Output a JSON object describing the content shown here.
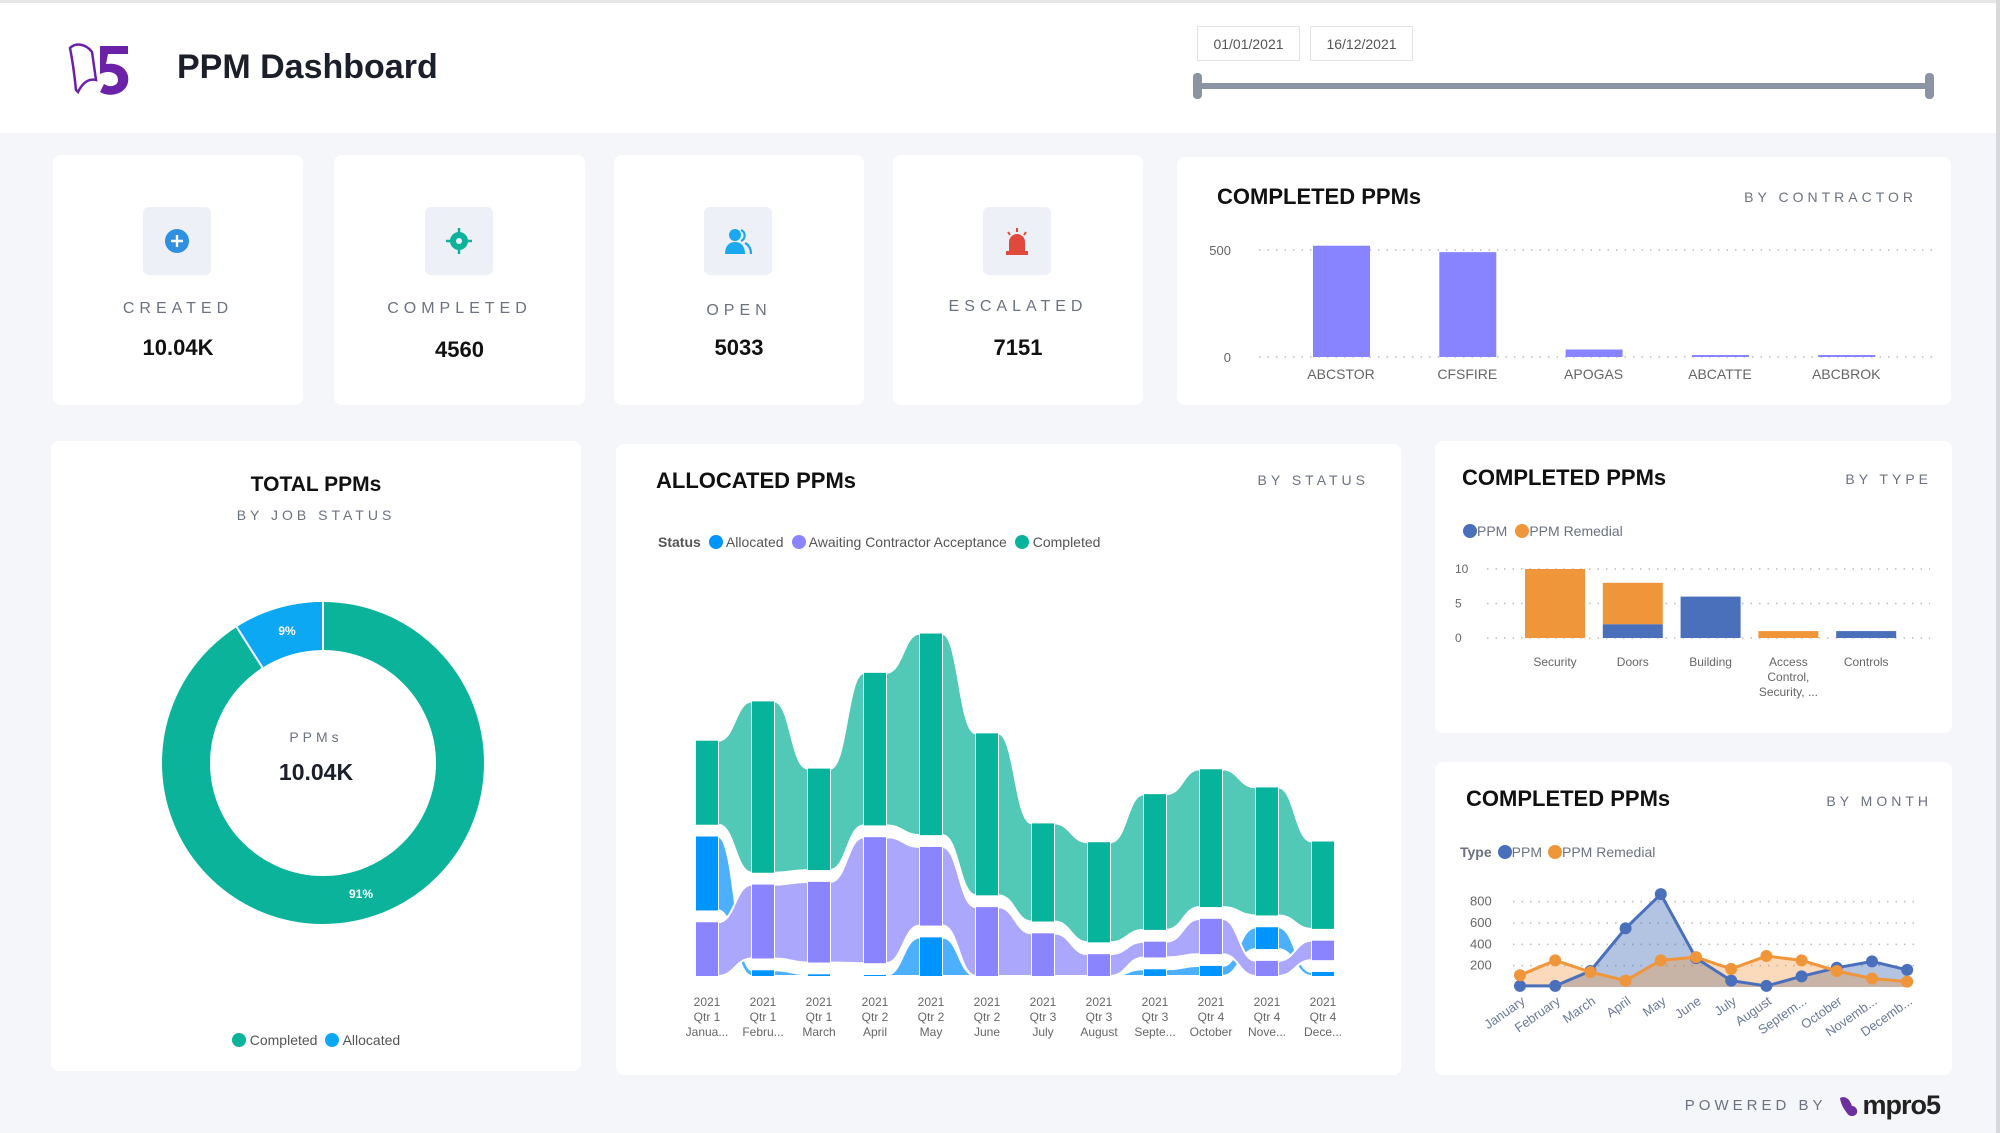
{
  "header": {
    "title": "PPM Dashboard",
    "logo_text": "5",
    "date_start": "01/01/2021",
    "date_end": "16/12/2021"
  },
  "kpis": [
    {
      "label": "CREATED",
      "value": "10.04K",
      "icon": "plus-circle-icon",
      "color": "#2f8fe0"
    },
    {
      "label": "COMPLETED",
      "value": "4560",
      "icon": "target-icon",
      "color": "#0bb39a"
    },
    {
      "label": "OPEN",
      "value": "5033",
      "icon": "users-icon",
      "color": "#1aa8f0"
    },
    {
      "label": "ESCALATED",
      "value": "7151",
      "icon": "alarm-icon",
      "color": "#e04a3a"
    }
  ],
  "colors": {
    "completed": "#08b39b",
    "completed_ribbon": "#52c8b6",
    "awaiting": "#8a85ff",
    "awaiting_ribbon": "#aaa7fc",
    "allocated": "#0094ff",
    "allocated_ribbon": "#4db0ff",
    "ppm": "#4a6fbb",
    "remedial": "#f0963a",
    "contractor": "#8884ff"
  },
  "footer": {
    "powered_by": "POWERED BY",
    "brand": "mpro5"
  },
  "chart_data": [
    {
      "id": "contractor",
      "type": "bar",
      "title": "COMPLETED PPMs",
      "subtitle": "BY CONTRACTOR",
      "categories": [
        "ABCSTOR",
        "CFSFIRE",
        "APOGAS",
        "ABCATTE",
        "ABCBROK"
      ],
      "values": [
        520,
        490,
        35,
        8,
        8
      ],
      "yticks": [
        "0",
        "500"
      ],
      "ylim": [
        0,
        500
      ],
      "grid": true
    },
    {
      "id": "total",
      "type": "pie",
      "title": "TOTAL PPMs",
      "subtitle": "BY JOB STATUS",
      "center_label": "PPMs",
      "center_value": "10.04K",
      "slices": [
        {
          "name": "Completed",
          "value": 91,
          "label": "91%"
        },
        {
          "name": "Allocated",
          "value": 9,
          "label": "9%"
        }
      ],
      "legend": "bottom"
    },
    {
      "id": "allocated",
      "type": "area",
      "subtype": "ribbon",
      "title": "ALLOCATED PPMs",
      "subtitle": "BY STATUS",
      "legend_title": "Status",
      "categories": [
        [
          "2021",
          "Qtr 1",
          "Janua..."
        ],
        [
          "2021",
          "Qtr 1",
          "Febru..."
        ],
        [
          "2021",
          "Qtr 1",
          "March"
        ],
        [
          "2021",
          "Qtr 2",
          "April"
        ],
        [
          "2021",
          "Qtr 2",
          "May"
        ],
        [
          "2021",
          "Qtr 2",
          "June"
        ],
        [
          "2021",
          "Qtr 3",
          "July"
        ],
        [
          "2021",
          "Qtr 3",
          "August"
        ],
        [
          "2021",
          "Qtr 3",
          "Septe..."
        ],
        [
          "2021",
          "Qtr 4",
          "October"
        ],
        [
          "2021",
          "Qtr 4",
          "Nove..."
        ],
        [
          "2021",
          "Qtr 4",
          "Dece..."
        ]
      ],
      "series": [
        {
          "name": "Allocated",
          "values": [
            220,
            17,
            5,
            3,
            115,
            0,
            0,
            0,
            20,
            30,
            65,
            12
          ]
        },
        {
          "name": "Awaiting Contractor Acceptance",
          "values": [
            160,
            220,
            240,
            375,
            234,
            205,
            127,
            65,
            47,
            105,
            45,
            58
          ]
        },
        {
          "name": "Completed",
          "values": [
            250,
            510,
            302,
            454,
            600,
            482,
            292,
            298,
            404,
            410,
            381,
            260
          ]
        }
      ],
      "legend": "top-left"
    },
    {
      "id": "bytype",
      "type": "bar",
      "subtype": "stacked",
      "title": "COMPLETED PPMs",
      "subtitle": "BY TYPE",
      "categories": [
        "Security",
        "Doors",
        "Building",
        [
          "Access",
          "Control,",
          "Security, ..."
        ],
        "Controls"
      ],
      "series": [
        {
          "name": "PPM",
          "values": [
            0,
            2,
            6,
            0,
            1
          ]
        },
        {
          "name": "PPM Remedial",
          "values": [
            10,
            6,
            0,
            1,
            0
          ]
        }
      ],
      "yticks": [
        "0",
        "5",
        "10"
      ],
      "ylim": [
        0,
        10
      ],
      "legend": "top-left"
    },
    {
      "id": "bymonth",
      "type": "area",
      "title": "COMPLETED PPMs",
      "subtitle": "BY MONTH",
      "legend_title": "Type",
      "categories": [
        "January",
        "February",
        "March",
        "April",
        "May",
        "June",
        "July",
        "August",
        "Septem...",
        "October",
        "Novemb...",
        "Decemb..."
      ],
      "series": [
        {
          "name": "PPM",
          "values": [
            10,
            10,
            150,
            550,
            870,
            270,
            60,
            10,
            100,
            180,
            240,
            160
          ]
        },
        {
          "name": "PPM Remedial",
          "values": [
            110,
            250,
            140,
            60,
            250,
            280,
            170,
            290,
            250,
            150,
            80,
            50
          ]
        }
      ],
      "yticks": [
        "200",
        "400",
        "600",
        "800"
      ],
      "ylim": [
        0,
        900
      ],
      "legend": "top-left"
    }
  ]
}
